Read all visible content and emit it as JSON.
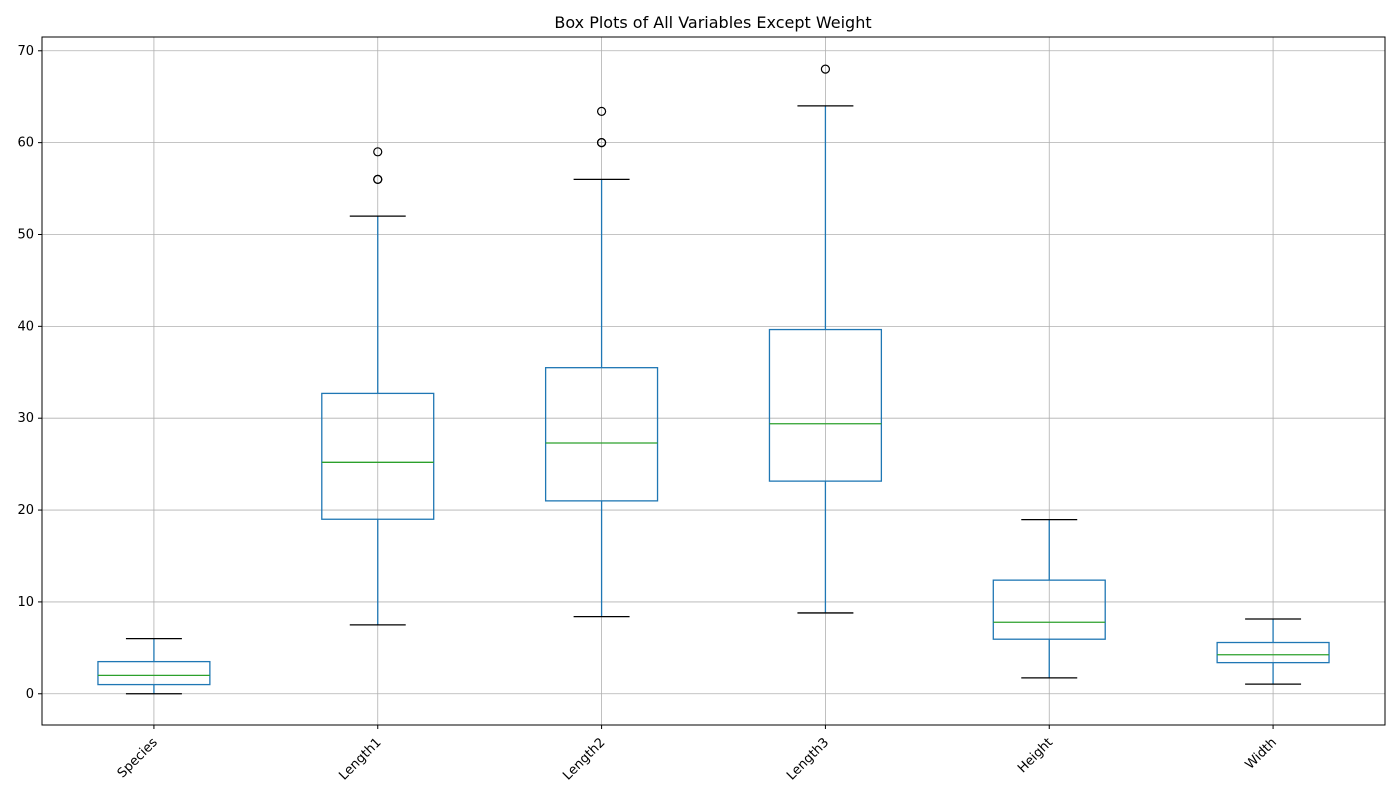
{
  "chart_data": {
    "type": "box",
    "title": "Box Plots of All Variables Except Weight",
    "xlabel": "",
    "ylabel": "",
    "ylim": [
      -3.4,
      71.5
    ],
    "yticks": [
      0,
      10,
      20,
      30,
      40,
      50,
      60,
      70
    ],
    "grid": true,
    "xtick_rotation": 45,
    "colors": {
      "box": "#1f77b4",
      "median": "#2ca02c",
      "cap": "#000000",
      "flier": "#000000",
      "grid": "#b0b0b0"
    },
    "categories": [
      "Species",
      "Length1",
      "Length2",
      "Length3",
      "Height",
      "Width"
    ],
    "boxes": [
      {
        "name": "Species",
        "whislo": 0,
        "q1": 1,
        "med": 2,
        "q3": 3.5,
        "whishi": 6,
        "fliers": []
      },
      {
        "name": "Length1",
        "whislo": 7.5,
        "q1": 19,
        "med": 25.2,
        "q3": 32.7,
        "whishi": 52,
        "fliers": [
          56,
          56,
          59
        ]
      },
      {
        "name": "Length2",
        "whislo": 8.4,
        "q1": 21,
        "med": 27.3,
        "q3": 35.5,
        "whishi": 56,
        "fliers": [
          60,
          60,
          63.4
        ]
      },
      {
        "name": "Length3",
        "whislo": 8.8,
        "q1": 23.15,
        "med": 29.4,
        "q3": 39.65,
        "whishi": 64,
        "fliers": [
          68
        ]
      },
      {
        "name": "Height",
        "whislo": 1.73,
        "q1": 5.94,
        "med": 7.79,
        "q3": 12.37,
        "whishi": 18.96,
        "fliers": []
      },
      {
        "name": "Width",
        "whislo": 1.05,
        "q1": 3.39,
        "med": 4.25,
        "q3": 5.58,
        "whishi": 8.14,
        "fliers": []
      }
    ]
  }
}
